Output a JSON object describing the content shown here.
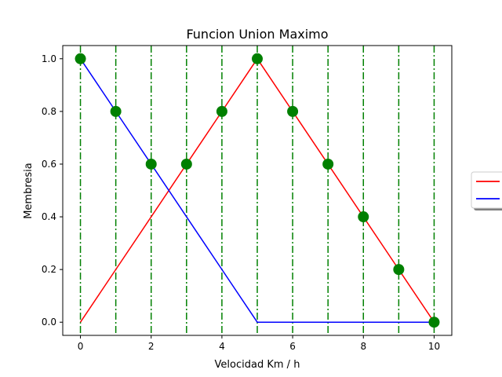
{
  "chart_data": {
    "type": "line",
    "title": "Funcion Union Maximo",
    "xlabel": "Velocidad Km / h",
    "ylabel": "Membresia",
    "xlim": [
      -0.5,
      10.5
    ],
    "ylim": [
      -0.05,
      1.05
    ],
    "xticks": [
      0,
      2,
      4,
      6,
      8,
      10
    ],
    "yticks": [
      0.0,
      0.2,
      0.4,
      0.6,
      0.8,
      1.0
    ],
    "xtick_labels": [
      "0",
      "2",
      "4",
      "6",
      "8",
      "10"
    ],
    "ytick_labels": [
      "0.0",
      "0.2",
      "0.4",
      "0.6",
      "0.8",
      "1.0"
    ],
    "grid": false,
    "legend": {
      "placement": "outside-right",
      "shadow": true
    },
    "x": [
      0,
      1,
      2,
      3,
      4,
      5,
      6,
      7,
      8,
      9,
      10
    ],
    "series": [
      {
        "kind": "line",
        "color": "#ff0000",
        "values": [
          0,
          0.2,
          0.4,
          0.6,
          0.8,
          1.0,
          0.8,
          0.6,
          0.4,
          0.2,
          0
        ]
      },
      {
        "kind": "line",
        "color": "#0000ff",
        "values": [
          1.0,
          0.8,
          0.6,
          0.4,
          0.2,
          0,
          0,
          0,
          0,
          0,
          0
        ]
      },
      {
        "kind": "markers",
        "color": "#008000",
        "values": [
          1.0,
          0.8,
          0.6,
          0.6,
          0.8,
          1.0,
          0.8,
          0.6,
          0.4,
          0.2,
          0
        ]
      }
    ],
    "vlines": {
      "x": [
        0,
        1,
        2,
        3,
        4,
        5,
        6,
        7,
        8,
        9,
        10
      ],
      "color": "#008000",
      "style": "dash-dot"
    }
  }
}
